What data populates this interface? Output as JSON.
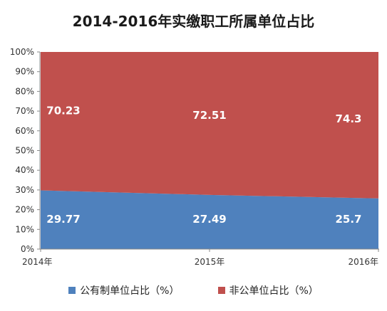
{
  "chart_data": {
    "type": "area",
    "title": "2014-2016年实缴职工所属单位占比",
    "x": [
      "2014年",
      "2015年",
      "2016年"
    ],
    "yticks": [
      "0%",
      "10%",
      "20%",
      "30%",
      "40%",
      "50%",
      "60%",
      "70%",
      "80%",
      "90%",
      "100%"
    ],
    "ylim": [
      0,
      100
    ],
    "stacked": true,
    "grid": false,
    "legend_position": "bottom",
    "series": [
      {
        "name": "公有制单位占比（%）",
        "values": [
          29.77,
          27.49,
          25.7
        ],
        "labels": [
          "29.77",
          "27.49",
          "25.7"
        ],
        "color": "#4F81BD"
      },
      {
        "name": "非公单位占比（%）",
        "values": [
          70.23,
          72.51,
          74.3
        ],
        "labels": [
          "70.23",
          "72.51",
          "74.3"
        ],
        "color": "#C0504D"
      }
    ]
  }
}
